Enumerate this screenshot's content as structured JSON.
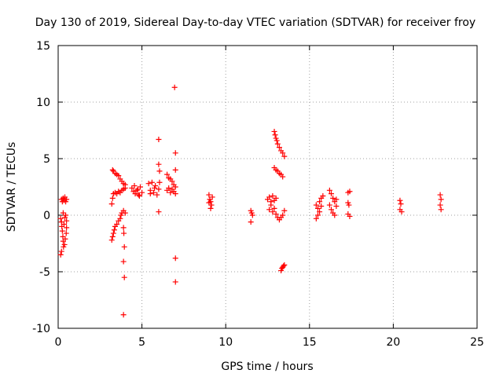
{
  "chart_data": {
    "type": "scatter",
    "title": "Day 130 of 2019, Sidereal Day-to-day VTEC variation (SDTVAR) for receiver froy",
    "xlabel": "GPS time / hours",
    "ylabel": "SDTVAR / TECUs",
    "xlim": [
      0,
      25
    ],
    "ylim": [
      -10,
      15
    ],
    "xticks": [
      0,
      5,
      10,
      15,
      20,
      25
    ],
    "yticks": [
      -10,
      -5,
      0,
      5,
      10,
      15
    ],
    "grid": true,
    "marker": "plus",
    "color": "#ff0000",
    "series": [
      {
        "name": "SDTVAR",
        "points": [
          [
            0.2,
            1.4
          ],
          [
            0.25,
            1.2
          ],
          [
            0.3,
            1.5
          ],
          [
            0.35,
            1.3
          ],
          [
            0.4,
            1.6
          ],
          [
            0.45,
            1.2
          ],
          [
            0.5,
            1.4
          ],
          [
            0.15,
            -0.3
          ],
          [
            0.2,
            -0.6
          ],
          [
            0.22,
            -1.0
          ],
          [
            0.25,
            -1.4
          ],
          [
            0.28,
            -1.9
          ],
          [
            0.3,
            -2.3
          ],
          [
            0.32,
            -2.8
          ],
          [
            0.2,
            -3.2
          ],
          [
            0.15,
            -3.5
          ],
          [
            0.35,
            -0.8
          ],
          [
            0.4,
            -0.2
          ],
          [
            0.45,
            0.0
          ],
          [
            0.5,
            -0.5
          ],
          [
            0.5,
            -1.1
          ],
          [
            0.48,
            -1.6
          ],
          [
            0.42,
            -2.1
          ],
          [
            0.38,
            -2.6
          ],
          [
            0.3,
            0.2
          ],
          [
            3.25,
            4.0
          ],
          [
            3.3,
            3.9
          ],
          [
            3.4,
            3.7
          ],
          [
            3.5,
            3.6
          ],
          [
            3.6,
            3.5
          ],
          [
            3.7,
            3.2
          ],
          [
            3.8,
            3.0
          ],
          [
            3.9,
            2.8
          ],
          [
            4.0,
            2.7
          ],
          [
            3.2,
            1.0
          ],
          [
            3.25,
            1.5
          ],
          [
            3.3,
            1.9
          ],
          [
            3.4,
            2.0
          ],
          [
            3.5,
            1.9
          ],
          [
            3.6,
            2.1
          ],
          [
            3.7,
            2.0
          ],
          [
            3.8,
            2.2
          ],
          [
            3.9,
            2.3
          ],
          [
            4.0,
            2.4
          ],
          [
            3.2,
            -2.2
          ],
          [
            3.25,
            -1.9
          ],
          [
            3.3,
            -1.6
          ],
          [
            3.35,
            -1.3
          ],
          [
            3.4,
            -1.0
          ],
          [
            3.5,
            -0.8
          ],
          [
            3.6,
            -0.5
          ],
          [
            3.7,
            -0.3
          ],
          [
            3.75,
            0.0
          ],
          [
            3.8,
            0.2
          ],
          [
            3.9,
            0.4
          ],
          [
            4.0,
            0.2
          ],
          [
            3.9,
            -1.1
          ],
          [
            3.92,
            -1.6
          ],
          [
            3.95,
            -2.8
          ],
          [
            3.9,
            -4.1
          ],
          [
            3.95,
            -5.5
          ],
          [
            3.9,
            -8.8
          ],
          [
            4.4,
            2.4
          ],
          [
            4.5,
            2.1
          ],
          [
            4.6,
            1.9
          ],
          [
            4.7,
            2.2
          ],
          [
            4.8,
            1.8
          ],
          [
            4.9,
            2.5
          ],
          [
            5.0,
            2.0
          ],
          [
            4.55,
            2.6
          ],
          [
            4.75,
            2.3
          ],
          [
            4.85,
            1.7
          ],
          [
            5.4,
            2.8
          ],
          [
            5.5,
            2.2
          ],
          [
            5.6,
            2.9
          ],
          [
            5.7,
            2.0
          ],
          [
            5.8,
            2.6
          ],
          [
            5.9,
            1.8
          ],
          [
            6.0,
            2.3
          ],
          [
            6.05,
            2.9
          ],
          [
            5.5,
            1.9
          ],
          [
            5.75,
            2.4
          ],
          [
            6.0,
            6.7
          ],
          [
            6.0,
            4.5
          ],
          [
            6.05,
            3.9
          ],
          [
            6.0,
            0.3
          ],
          [
            6.5,
            3.6
          ],
          [
            6.6,
            3.3
          ],
          [
            6.7,
            3.2
          ],
          [
            6.8,
            3.0
          ],
          [
            6.9,
            2.7
          ],
          [
            7.0,
            2.5
          ],
          [
            6.5,
            2.2
          ],
          [
            6.6,
            2.4
          ],
          [
            6.7,
            2.0
          ],
          [
            6.8,
            2.3
          ],
          [
            6.9,
            2.1
          ],
          [
            7.0,
            1.9
          ],
          [
            6.95,
            11.3
          ],
          [
            7.0,
            5.5
          ],
          [
            7.0,
            4.0
          ],
          [
            7.0,
            -3.8
          ],
          [
            7.0,
            -5.9
          ],
          [
            9.0,
            1.8
          ],
          [
            9.05,
            1.4
          ],
          [
            9.1,
            1.2
          ],
          [
            9.15,
            0.9
          ],
          [
            9.2,
            1.6
          ],
          [
            9.1,
            0.6
          ],
          [
            9.0,
            1.1
          ],
          [
            11.5,
            0.4
          ],
          [
            11.55,
            0.2
          ],
          [
            11.6,
            0.0
          ],
          [
            11.5,
            -0.6
          ],
          [
            12.5,
            1.4
          ],
          [
            12.6,
            1.6
          ],
          [
            12.7,
            1.2
          ],
          [
            12.8,
            1.7
          ],
          [
            12.9,
            1.3
          ],
          [
            13.0,
            1.5
          ],
          [
            12.6,
            0.5
          ],
          [
            12.7,
            0.9
          ],
          [
            12.8,
            0.3
          ],
          [
            12.9,
            0.6
          ],
          [
            13.0,
            0.1
          ],
          [
            13.1,
            -0.2
          ],
          [
            13.2,
            -0.4
          ],
          [
            13.3,
            -0.2
          ],
          [
            13.4,
            0.0
          ],
          [
            13.5,
            0.4
          ],
          [
            12.9,
            7.4
          ],
          [
            12.95,
            7.1
          ],
          [
            13.0,
            6.8
          ],
          [
            13.05,
            6.6
          ],
          [
            13.1,
            6.3
          ],
          [
            13.2,
            6.0
          ],
          [
            13.3,
            5.7
          ],
          [
            13.4,
            5.5
          ],
          [
            13.5,
            5.2
          ],
          [
            12.9,
            4.2
          ],
          [
            13.0,
            4.0
          ],
          [
            13.1,
            3.9
          ],
          [
            13.2,
            3.7
          ],
          [
            13.3,
            3.6
          ],
          [
            13.4,
            3.4
          ],
          [
            13.3,
            -4.9
          ],
          [
            13.35,
            -4.7
          ],
          [
            13.4,
            -4.6
          ],
          [
            13.45,
            -4.5
          ],
          [
            13.5,
            -4.4
          ],
          [
            15.4,
            0.9
          ],
          [
            15.5,
            0.6
          ],
          [
            15.6,
            0.3
          ],
          [
            15.5,
            0.0
          ],
          [
            15.4,
            -0.3
          ],
          [
            15.6,
            1.2
          ],
          [
            15.7,
            1.5
          ],
          [
            15.8,
            1.7
          ],
          [
            15.7,
            0.8
          ],
          [
            16.2,
            2.2
          ],
          [
            16.3,
            1.9
          ],
          [
            16.4,
            1.5
          ],
          [
            16.5,
            1.2
          ],
          [
            16.2,
            0.9
          ],
          [
            16.3,
            0.5
          ],
          [
            16.4,
            0.2
          ],
          [
            16.5,
            0.0
          ],
          [
            16.6,
            0.8
          ],
          [
            16.6,
            1.4
          ],
          [
            17.3,
            2.0
          ],
          [
            17.4,
            2.1
          ],
          [
            17.3,
            1.1
          ],
          [
            17.35,
            0.9
          ],
          [
            17.3,
            0.1
          ],
          [
            17.4,
            -0.1
          ],
          [
            20.4,
            1.3
          ],
          [
            20.45,
            1.0
          ],
          [
            20.4,
            0.5
          ],
          [
            20.5,
            0.3
          ],
          [
            22.8,
            1.8
          ],
          [
            22.85,
            1.4
          ],
          [
            22.8,
            0.9
          ],
          [
            22.85,
            0.5
          ]
        ]
      }
    ]
  }
}
